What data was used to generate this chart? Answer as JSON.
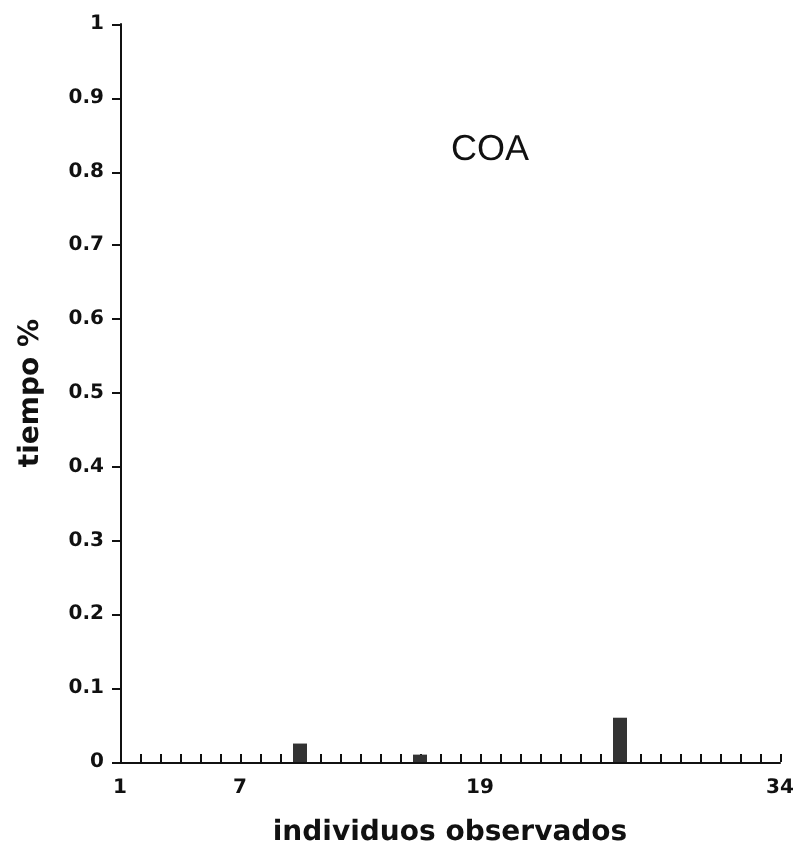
{
  "chart_data": {
    "type": "bar",
    "title": "COA",
    "xlabel": "individuos observados",
    "ylabel": "tiempo %",
    "x": [
      1,
      2,
      3,
      4,
      5,
      6,
      7,
      8,
      9,
      10,
      11,
      12,
      13,
      14,
      15,
      16,
      17,
      18,
      19,
      20,
      21,
      22,
      23,
      24,
      25,
      26,
      27,
      28,
      29,
      30,
      31,
      32,
      33,
      34
    ],
    "values": [
      0,
      0,
      0,
      0,
      0,
      0,
      0,
      0,
      0,
      0.025,
      0,
      0,
      0,
      0,
      0,
      0.01,
      0,
      0,
      0,
      0,
      0,
      0,
      0,
      0,
      0,
      0.06,
      0,
      0,
      0,
      0,
      0,
      0,
      0,
      0
    ],
    "color": "#333333",
    "xlim": [
      1,
      34
    ],
    "xticks": [
      1,
      {
        "value": 2,
        "label": null
      },
      {
        "value": 3,
        "label": null
      },
      {
        "value": 4,
        "label": null
      },
      {
        "value": 5,
        "label": null
      },
      {
        "value": 6,
        "label": null
      },
      7,
      {
        "value": 8,
        "label": null
      },
      {
        "value": 9,
        "label": null
      },
      {
        "value": 10,
        "label": null
      },
      {
        "value": 11,
        "label": null
      },
      {
        "value": 12,
        "label": null
      },
      {
        "value": 13,
        "label": null
      },
      {
        "value": 14,
        "label": null
      },
      {
        "value": 15,
        "label": null
      },
      {
        "value": 16,
        "label": null
      },
      {
        "value": 17,
        "label": null
      },
      {
        "value": 18,
        "label": null
      },
      19,
      {
        "value": 20,
        "label": null
      },
      {
        "value": 21,
        "label": null
      },
      {
        "value": 22,
        "label": null
      },
      {
        "value": 23,
        "label": null
      },
      {
        "value": 24,
        "label": null
      },
      {
        "value": 25,
        "label": null
      },
      {
        "value": 26,
        "label": null
      },
      {
        "value": 27,
        "label": null
      },
      {
        "value": 28,
        "label": null
      },
      {
        "value": 29,
        "label": null
      },
      {
        "value": 30,
        "label": null
      },
      {
        "value": 31,
        "label": null
      },
      {
        "value": 32,
        "label": null
      },
      {
        "value": 33,
        "label": null
      },
      34
    ],
    "ylim": [
      0,
      1
    ],
    "yticks": [
      0,
      0.1,
      0.2,
      0.3,
      0.4,
      0.5,
      0.6,
      0.7,
      0.8,
      0.9,
      1
    ],
    "grid": false
  }
}
